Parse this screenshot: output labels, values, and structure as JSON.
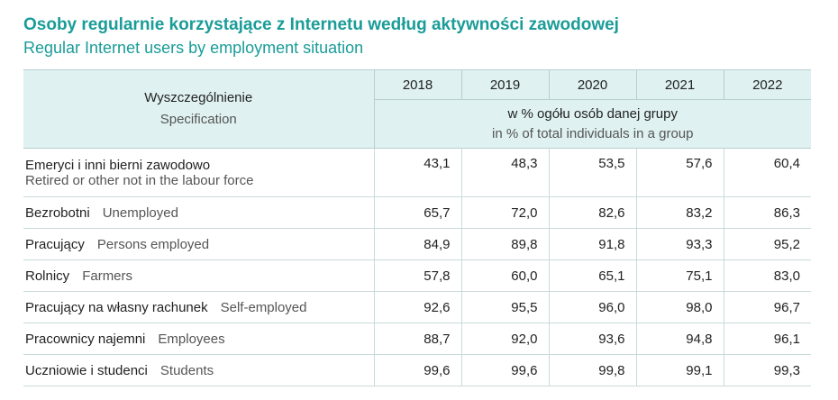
{
  "title_pl": "Osoby regularnie korzystające z Internetu według aktywności zawodowej",
  "title_en": "Regular Internet users by employment situation",
  "header": {
    "spec_pl": "Wyszczególnienie",
    "spec_en": "Specification",
    "years": [
      "2018",
      "2019",
      "2020",
      "2021",
      "2022"
    ],
    "unit_pl": "w % ogółu osób danej grupy",
    "unit_en": "in % of total individuals in a group"
  },
  "rows": [
    {
      "label_pl": "Emeryci i inni bierni zawodowo",
      "label_en": "Retired or other not in the labour force",
      "values": [
        "43,1",
        "48,3",
        "53,5",
        "57,6",
        "60,4"
      ]
    },
    {
      "label_pl": "Bezrobotni",
      "label_en": "Unemployed",
      "values": [
        "65,7",
        "72,0",
        "82,6",
        "83,2",
        "86,3"
      ]
    },
    {
      "label_pl": "Pracujący",
      "label_en": "Persons employed",
      "values": [
        "84,9",
        "89,8",
        "91,8",
        "93,3",
        "95,2"
      ]
    },
    {
      "label_pl": "Rolnicy",
      "label_en": "Farmers",
      "values": [
        "57,8",
        "60,0",
        "65,1",
        "75,1",
        "83,0"
      ]
    },
    {
      "label_pl": "Pracujący na własny rachunek",
      "label_en": "Self-employed",
      "values": [
        "92,6",
        "95,5",
        "96,0",
        "98,0",
        "96,7"
      ]
    },
    {
      "label_pl": "Pracownicy najemni",
      "label_en": "Employees",
      "values": [
        "88,7",
        "92,0",
        "93,6",
        "94,8",
        "96,1"
      ]
    },
    {
      "label_pl": "Uczniowie i studenci",
      "label_en": "Students",
      "values": [
        "99,6",
        "99,6",
        "99,8",
        "99,1",
        "99,3"
      ]
    }
  ]
}
